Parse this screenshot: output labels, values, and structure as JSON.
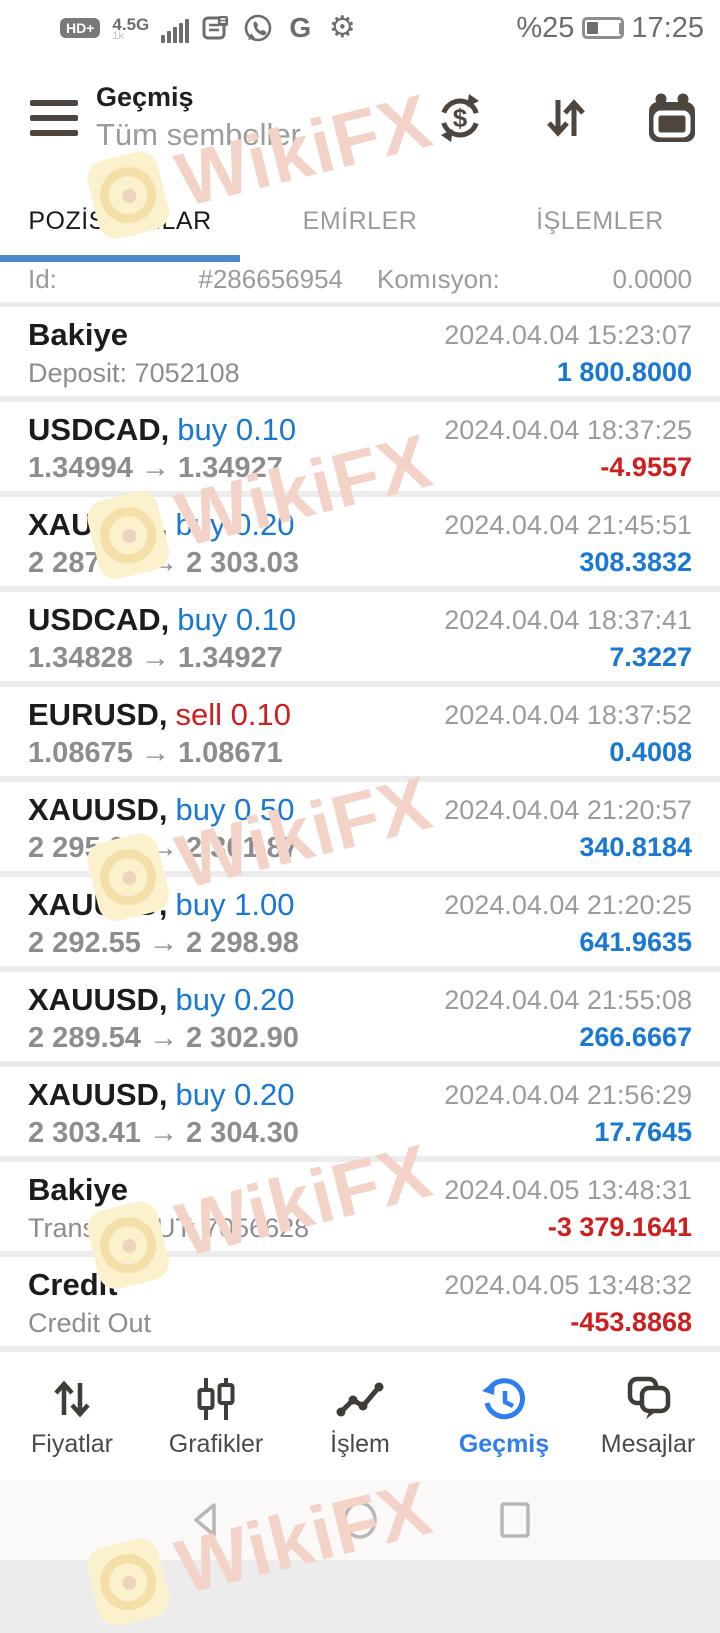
{
  "status_bar": {
    "hd_badge": "HD+",
    "network": "4.5G",
    "network_sub": "1k",
    "google_letter": "G",
    "gear_glyph": "⚙",
    "battery_percent": "%25",
    "time": "17:25"
  },
  "header": {
    "title": "Geçmiş",
    "subtitle": "Tüm semboller"
  },
  "tabs": [
    {
      "label": "POZİSYONLAR",
      "active": true
    },
    {
      "label": "EMİRLER",
      "active": false
    },
    {
      "label": "İŞLEMLER",
      "active": false
    }
  ],
  "detail_row": {
    "id_label": "Id:",
    "id_value": "#286656954",
    "commission_label": "Komısyon:",
    "commission_value": "0.0000"
  },
  "rows": [
    {
      "kind": "balance",
      "title": "Bakiye",
      "subtitle": "Deposit: 7052108",
      "datetime": "2024.04.04 15:23:07",
      "amount": "1 800.8000",
      "amount_tone": "profit"
    },
    {
      "kind": "trade",
      "symbol": "USDCAD,",
      "side": "buy 0.10",
      "side_tone": "buy",
      "prices": "1.34994 → 1.34927",
      "datetime": "2024.04.04 18:37:25",
      "amount": "-4.9557",
      "amount_tone": "loss"
    },
    {
      "kind": "trade",
      "symbol": "XAUUSD,",
      "side": "buy 0.20",
      "side_tone": "buy",
      "prices": "2 287.58 → 2 303.03",
      "datetime": "2024.04.04 21:45:51",
      "amount": "308.3832",
      "amount_tone": "profit"
    },
    {
      "kind": "trade",
      "symbol": "USDCAD,",
      "side": "buy 0.10",
      "side_tone": "buy",
      "prices": "1.34828 → 1.34927",
      "datetime": "2024.04.04 18:37:41",
      "amount": "7.3227",
      "amount_tone": "profit"
    },
    {
      "kind": "trade",
      "symbol": "EURUSD,",
      "side": "sell 0.10",
      "side_tone": "sell",
      "prices": "1.08675 → 1.08671",
      "datetime": "2024.04.04 18:37:52",
      "amount": "0.4008",
      "amount_tone": "profit"
    },
    {
      "kind": "trade",
      "symbol": "XAUUSD,",
      "side": "buy 0.50",
      "side_tone": "buy",
      "prices": "2 295.04 → 2 301.87",
      "datetime": "2024.04.04 21:20:57",
      "amount": "340.8184",
      "amount_tone": "profit"
    },
    {
      "kind": "trade",
      "symbol": "XAUUSD,",
      "side": "buy 1.00",
      "side_tone": "buy",
      "prices": "2 292.55 → 2 298.98",
      "datetime": "2024.04.04 21:20:25",
      "amount": "641.9635",
      "amount_tone": "profit"
    },
    {
      "kind": "trade",
      "symbol": "XAUUSD,",
      "side": "buy 0.20",
      "side_tone": "buy",
      "prices": "2 289.54 → 2 302.90",
      "datetime": "2024.04.04 21:55:08",
      "amount": "266.6667",
      "amount_tone": "profit"
    },
    {
      "kind": "trade",
      "symbol": "XAUUSD,",
      "side": "buy 0.20",
      "side_tone": "buy",
      "prices": "2 303.41 → 2 304.30",
      "datetime": "2024.04.04 21:56:29",
      "amount": "17.7645",
      "amount_tone": "profit"
    },
    {
      "kind": "balance",
      "title": "Bakiye",
      "subtitle": "Transfer OUT: 7056628",
      "datetime": "2024.04.05 13:48:31",
      "amount": "-3 379.1641",
      "amount_tone": "loss"
    },
    {
      "kind": "balance",
      "title": "Credit",
      "subtitle": "Credit Out",
      "datetime": "2024.04.05 13:48:32",
      "amount": "-453.8868",
      "amount_tone": "loss"
    }
  ],
  "bottom_nav": {
    "items": [
      {
        "label": "Fiyatlar",
        "icon": "arrows-up-down-icon",
        "active": false
      },
      {
        "label": "Grafikler",
        "icon": "candlestick-icon",
        "active": false
      },
      {
        "label": "İşlem",
        "icon": "trade-line-icon",
        "active": false
      },
      {
        "label": "Geçmiş",
        "icon": "history-clock-icon",
        "active": true
      },
      {
        "label": "Mesajlar",
        "icon": "messages-icon",
        "active": false
      }
    ]
  },
  "watermark": {
    "text": "WikiFX"
  },
  "colors": {
    "buy_blue": "#1878d4",
    "sell_red": "#cf1e1e",
    "tab_underline": "#4b87c9",
    "nav_active": "#2e7ef0"
  }
}
